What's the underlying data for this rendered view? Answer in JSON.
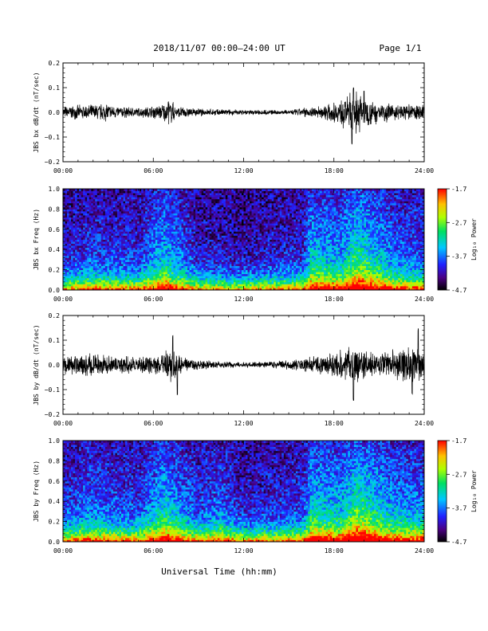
{
  "header": {
    "title": "2018/11/07  00:00–24:00 UT",
    "page": "Page 1/1"
  },
  "xlabel": "Universal Time (hh:mm)",
  "chart_data": [
    {
      "type": "line",
      "ylabel": "JBS bx dB/dt (nT/sec)",
      "ylim": [
        -0.2,
        0.2
      ],
      "yticks": [
        "0.2",
        "0.1",
        "0.0",
        "−0.1",
        "−0.2"
      ],
      "ytick_values": [
        0.2,
        0.1,
        0.0,
        -0.1,
        -0.2
      ],
      "xlim": [
        0,
        24
      ],
      "xticks": [
        "00:00",
        "06:00",
        "12:00",
        "18:00",
        "24:00"
      ],
      "envelope": [
        [
          0,
          0.02
        ],
        [
          2,
          0.025
        ],
        [
          2.8,
          0.03
        ],
        [
          3.5,
          0.02
        ],
        [
          5,
          0.015
        ],
        [
          6.5,
          0.025
        ],
        [
          7.2,
          0.04
        ],
        [
          7.6,
          0.02
        ],
        [
          9,
          0.012
        ],
        [
          12,
          0.008
        ],
        [
          15,
          0.008
        ],
        [
          16,
          0.015
        ],
        [
          17,
          0.02
        ],
        [
          18,
          0.03
        ],
        [
          19,
          0.06
        ],
        [
          19.5,
          0.07
        ],
        [
          20.5,
          0.04
        ],
        [
          22,
          0.025
        ],
        [
          24,
          0.025
        ]
      ],
      "peaks": [
        [
          19.2,
          -0.14
        ],
        [
          19.3,
          0.1
        ],
        [
          20.0,
          0.09
        ],
        [
          7.0,
          0.045
        ],
        [
          2.9,
          0.03
        ]
      ]
    },
    {
      "type": "heatmap",
      "ylabel": "JBS bx Freq (Hz)",
      "ylim": [
        0.0,
        1.0
      ],
      "yticks": [
        "1.0",
        "0.8",
        "0.6",
        "0.4",
        "0.2",
        "0.0"
      ],
      "ytick_values": [
        1.0,
        0.8,
        0.6,
        0.4,
        0.2,
        0.0
      ],
      "xlim": [
        0,
        24
      ],
      "xticks": [
        "00:00",
        "06:00",
        "12:00",
        "18:00",
        "24:00"
      ],
      "colorbar": {
        "label": "Log₁₀ Power",
        "range": [
          -4.7,
          -1.7
        ],
        "ticks": [
          "-1.7",
          "-2.7",
          "-3.7",
          "-4.7"
        ],
        "tick_values": [
          -1.7,
          -2.7,
          -3.7,
          -4.7
        ]
      },
      "activity": [
        [
          0,
          0.1
        ],
        [
          2,
          0.2
        ],
        [
          5,
          0.15
        ],
        [
          6.8,
          0.5
        ],
        [
          7.2,
          0.4
        ],
        [
          9,
          0.1
        ],
        [
          12,
          0.05
        ],
        [
          16,
          0.15
        ],
        [
          16.5,
          0.5
        ],
        [
          17.5,
          0.45
        ],
        [
          18.5,
          0.4
        ],
        [
          19.5,
          0.7
        ],
        [
          20.5,
          0.55
        ],
        [
          22,
          0.3
        ],
        [
          24,
          0.25
        ]
      ]
    },
    {
      "type": "line",
      "ylabel": "JBS by dB/dt (nT/sec)",
      "ylim": [
        -0.2,
        0.2
      ],
      "yticks": [
        "0.2",
        "0.1",
        "0.0",
        "−0.1",
        "−0.2"
      ],
      "ytick_values": [
        0.2,
        0.1,
        0.0,
        -0.1,
        -0.2
      ],
      "xlim": [
        0,
        24
      ],
      "xticks": [
        "00:00",
        "06:00",
        "12:00",
        "18:00",
        "24:00"
      ],
      "envelope": [
        [
          0,
          0.03
        ],
        [
          1.5,
          0.04
        ],
        [
          3,
          0.03
        ],
        [
          5,
          0.025
        ],
        [
          6.5,
          0.03
        ],
        [
          7.2,
          0.06
        ],
        [
          7.8,
          0.03
        ],
        [
          9,
          0.015
        ],
        [
          12,
          0.008
        ],
        [
          14,
          0.012
        ],
        [
          16,
          0.02
        ],
        [
          17,
          0.03
        ],
        [
          18,
          0.035
        ],
        [
          19,
          0.06
        ],
        [
          20,
          0.05
        ],
        [
          21,
          0.04
        ],
        [
          22,
          0.05
        ],
        [
          23,
          0.06
        ],
        [
          24,
          0.05
        ]
      ],
      "peaks": [
        [
          7.3,
          0.12
        ],
        [
          7.6,
          -0.13
        ],
        [
          19.3,
          -0.15
        ],
        [
          23.6,
          0.15
        ],
        [
          23.2,
          -0.12
        ]
      ]
    },
    {
      "type": "heatmap",
      "ylabel": "JBS by Freq (Hz)",
      "ylim": [
        0.0,
        1.0
      ],
      "yticks": [
        "1.0",
        "0.8",
        "0.6",
        "0.4",
        "0.2",
        "0.0"
      ],
      "ytick_values": [
        1.0,
        0.8,
        0.6,
        0.4,
        0.2,
        0.0
      ],
      "xlim": [
        0,
        24
      ],
      "xticks": [
        "00:00",
        "06:00",
        "12:00",
        "18:00",
        "24:00"
      ],
      "colorbar": {
        "label": "Log₁₀ Power",
        "range": [
          -4.7,
          -1.7
        ],
        "ticks": [
          "-1.7",
          "-2.7",
          "-3.7",
          "-4.7"
        ],
        "tick_values": [
          -1.7,
          -2.7,
          -3.7,
          -4.7
        ]
      },
      "activity": [
        [
          0,
          0.15
        ],
        [
          1.5,
          0.3
        ],
        [
          3,
          0.25
        ],
        [
          5,
          0.2
        ],
        [
          6.8,
          0.55
        ],
        [
          7.2,
          0.45
        ],
        [
          9,
          0.2
        ],
        [
          10.5,
          0.3
        ],
        [
          12,
          0.1
        ],
        [
          14,
          0.15
        ],
        [
          16,
          0.2
        ],
        [
          16.5,
          0.55
        ],
        [
          17.5,
          0.5
        ],
        [
          18.5,
          0.45
        ],
        [
          19.5,
          0.75
        ],
        [
          20.5,
          0.6
        ],
        [
          22,
          0.4
        ],
        [
          24,
          0.35
        ]
      ]
    }
  ]
}
